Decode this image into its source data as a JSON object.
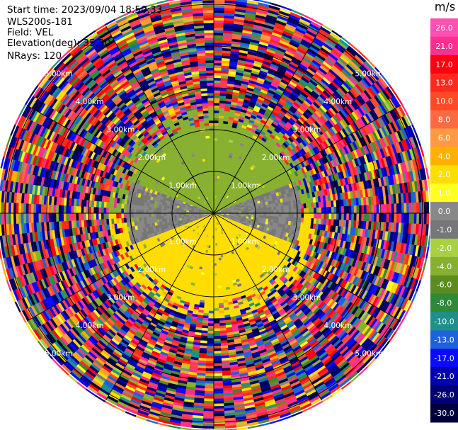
{
  "header": {
    "start_time": "Start time: 2023/09/04 18:50:33",
    "instrument": "WLS200s-181",
    "field": "Field: VEL",
    "elevation": "Elevation(deg): 35.30",
    "nrays": "NRays: 120"
  },
  "chart_data": {
    "type": "polar-ppi",
    "field": "VEL",
    "rays": 120,
    "range_rings_km": [
      1.0,
      2.0,
      3.0,
      4.0,
      5.0
    ],
    "ring_labels": [
      "1.00km",
      "2.00km",
      "3.00km",
      "4.00km",
      "5.00km"
    ],
    "unit": "m/s",
    "colorbar": {
      "ticks": [
        "26.0",
        "21.0",
        "17.0",
        "13.0",
        "10.0",
        "8.0",
        "6.0",
        "4.0",
        "2.0",
        "1.0",
        "0.0",
        "-1.0",
        "-2.0",
        "-4.0",
        "-6.0",
        "-8.0",
        "-10.0",
        "-13.0",
        "-17.0",
        "-21.0",
        "-26.0",
        "-30.0"
      ],
      "bins": [
        {
          "from": 26,
          "to": 30,
          "color": "#ff4fb0"
        },
        {
          "from": 21,
          "to": 26,
          "color": "#ff2f8f"
        },
        {
          "from": 17,
          "to": 21,
          "color": "#ff0010"
        },
        {
          "from": 13,
          "to": 17,
          "color": "#ff2a1e"
        },
        {
          "from": 10,
          "to": 13,
          "color": "#ff4a28"
        },
        {
          "from": 8,
          "to": 10,
          "color": "#ff6a40"
        },
        {
          "from": 6,
          "to": 8,
          "color": "#ff9a42"
        },
        {
          "from": 4,
          "to": 6,
          "color": "#ffb000"
        },
        {
          "from": 2,
          "to": 4,
          "color": "#ffdd00"
        },
        {
          "from": 1,
          "to": 2,
          "color": "#ffff22"
        },
        {
          "from": 0,
          "to": 1,
          "color": "#888888"
        },
        {
          "from": -1,
          "to": 0,
          "color": "#777777"
        },
        {
          "from": -2,
          "to": -1,
          "color": "#a8d040"
        },
        {
          "from": -4,
          "to": -2,
          "color": "#88b030"
        },
        {
          "from": -6,
          "to": -4,
          "color": "#5a8c20"
        },
        {
          "from": -8,
          "to": -6,
          "color": "#2e8a38"
        },
        {
          "from": -10,
          "to": -8,
          "color": "#1e8f8c"
        },
        {
          "from": -13,
          "to": -10,
          "color": "#1d63d8"
        },
        {
          "from": -17,
          "to": -13,
          "color": "#0a0aff"
        },
        {
          "from": -21,
          "to": -17,
          "color": "#0000b0"
        },
        {
          "from": -26,
          "to": -21,
          "color": "#000070"
        },
        {
          "from": -30,
          "to": -26,
          "color": "#00003a"
        }
      ]
    }
  }
}
